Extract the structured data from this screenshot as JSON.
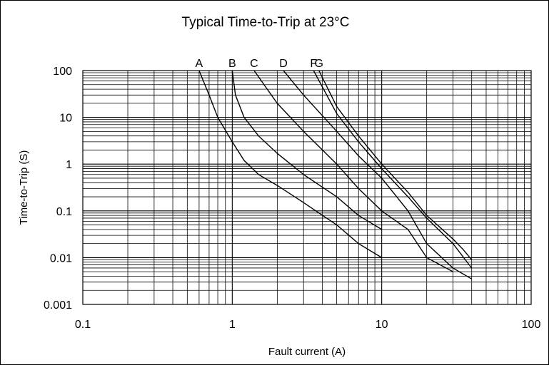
{
  "chart_data": {
    "type": "line",
    "title": "Typical Time-to-Trip at 23°C",
    "xlabel": "Fault current (A)",
    "ylabel": "Time-to-Trip (S)",
    "x_scale": "log",
    "y_scale": "log",
    "xlim": [
      0.1,
      100
    ],
    "ylim": [
      0.001,
      100
    ],
    "x_ticks": [
      "0.1",
      "1",
      "10",
      "100"
    ],
    "y_ticks": [
      "0.001",
      "0.01",
      "0.1",
      "1",
      "10",
      "100"
    ],
    "grid": true,
    "series": [
      {
        "name": "A",
        "x": [
          0.6,
          0.7,
          0.8,
          1.0,
          1.2,
          1.5,
          2,
          3,
          5,
          7,
          10
        ],
        "y": [
          100,
          30,
          10,
          3,
          1.2,
          0.6,
          0.35,
          0.15,
          0.05,
          0.02,
          0.01
        ]
      },
      {
        "name": "B",
        "x": [
          1.0,
          1.05,
          1.2,
          1.5,
          2,
          3,
          5,
          7,
          10
        ],
        "y": [
          100,
          30,
          10,
          4,
          1.7,
          0.6,
          0.2,
          0.08,
          0.04
        ]
      },
      {
        "name": "C",
        "x": [
          1.4,
          2,
          3,
          5,
          7,
          10,
          15,
          20,
          30
        ],
        "y": [
          100,
          20,
          5,
          1,
          0.3,
          0.1,
          0.04,
          0.01,
          0.005
        ]
      },
      {
        "name": "D",
        "x": [
          2.2,
          3,
          5,
          7,
          10,
          15,
          20,
          30,
          40
        ],
        "y": [
          100,
          30,
          5,
          1.5,
          0.5,
          0.1,
          0.02,
          0.006,
          0.0035
        ]
      },
      {
        "name": "F",
        "x": [
          3.5,
          5,
          7,
          10,
          15,
          20,
          30,
          40
        ],
        "y": [
          100,
          12,
          3,
          0.8,
          0.2,
          0.07,
          0.02,
          0.006
        ]
      },
      {
        "name": "G",
        "x": [
          3.8,
          5,
          7,
          10,
          15,
          20,
          30,
          35,
          40
        ],
        "y": [
          100,
          17,
          4,
          1,
          0.25,
          0.08,
          0.025,
          0.015,
          0.009
        ]
      }
    ]
  }
}
